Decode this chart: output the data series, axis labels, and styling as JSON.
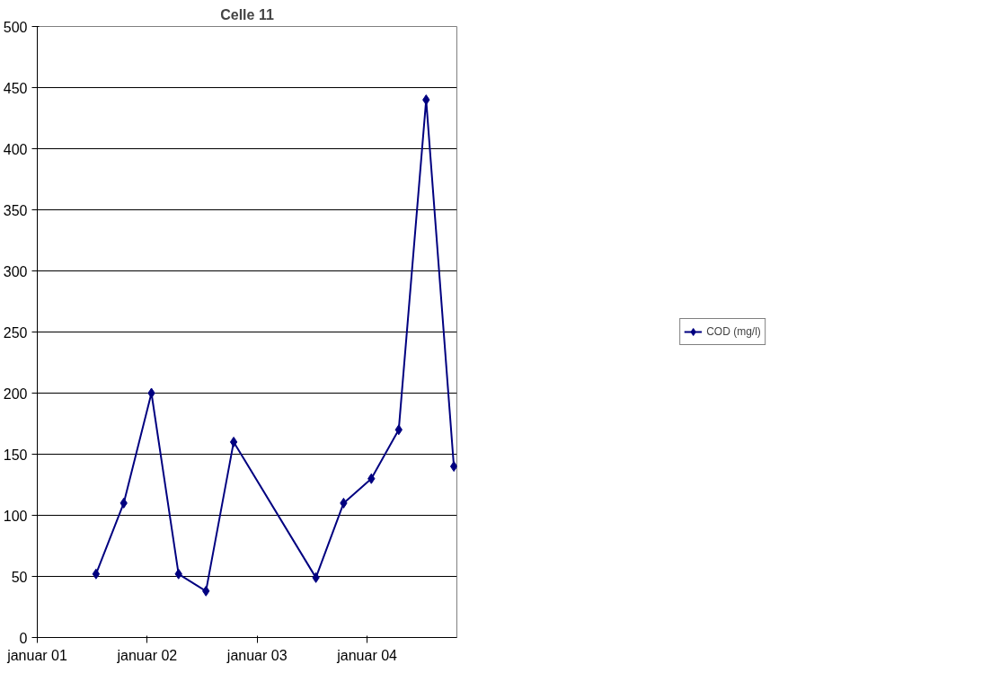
{
  "chart_data": {
    "type": "line",
    "title": "Celle 11",
    "x": [
      "2001-07-15",
      "2001-10-15",
      "2002-01-15",
      "2002-04-15",
      "2002-07-15",
      "2002-10-15",
      "2003-07-15",
      "2003-10-15",
      "2004-01-15",
      "2004-04-15",
      "2004-07-15",
      "2004-10-15"
    ],
    "series": [
      {
        "name": "COD (mg/l)",
        "color": "#000080",
        "values": [
          52,
          110,
          200,
          52,
          38,
          160,
          49,
          110,
          130,
          170,
          440,
          140
        ]
      }
    ],
    "xlim": [
      "2001-01-01",
      "2004-10-25"
    ],
    "xticks": [
      {
        "value": "2001-01-01",
        "label": "januar 01"
      },
      {
        "value": "2002-01-01",
        "label": "januar 02"
      },
      {
        "value": "2003-01-01",
        "label": "januar 03"
      },
      {
        "value": "2004-01-01",
        "label": "januar 04"
      }
    ],
    "ylim": [
      0,
      500
    ],
    "yticks": [
      0,
      50,
      100,
      150,
      200,
      250,
      300,
      350,
      400,
      450,
      500
    ],
    "grid": "y",
    "legend": "right",
    "marker": "diamond",
    "line_style": "solid"
  }
}
